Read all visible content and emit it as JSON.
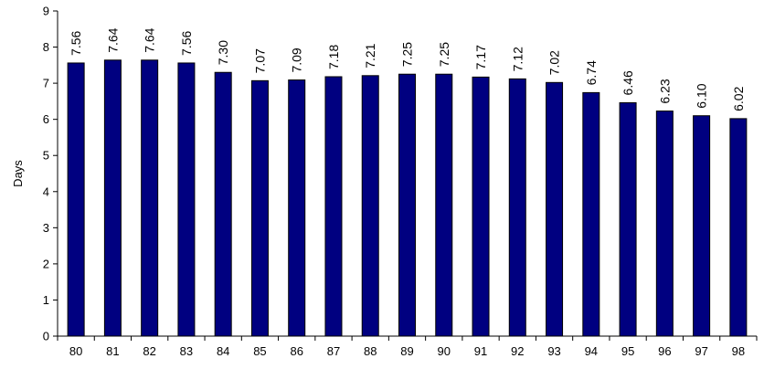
{
  "chart_data": {
    "type": "bar",
    "title": "",
    "xlabel": "",
    "ylabel": "Days",
    "categories": [
      "80",
      "81",
      "82",
      "83",
      "84",
      "85",
      "86",
      "87",
      "88",
      "89",
      "90",
      "91",
      "92",
      "93",
      "94",
      "95",
      "96",
      "97",
      "98"
    ],
    "values": [
      7.56,
      7.64,
      7.64,
      7.56,
      7.3,
      7.07,
      7.09,
      7.18,
      7.21,
      7.25,
      7.25,
      7.17,
      7.12,
      7.02,
      6.74,
      6.46,
      6.23,
      6.1,
      6.02
    ],
    "data_labels": [
      "7.56",
      "7.64",
      "7.64",
      "7.56",
      "7.30",
      "7.07",
      "7.09",
      "7.18",
      "7.21",
      "7.25",
      "7.25",
      "7.17",
      "7.12",
      "7.02",
      "6.74",
      "6.46",
      "6.23",
      "6.10",
      "6.02"
    ],
    "ylim": [
      0,
      9
    ],
    "yticks": [
      "0",
      "1",
      "2",
      "3",
      "4",
      "5",
      "6",
      "7",
      "8",
      "9"
    ],
    "grid": false,
    "legend": "none",
    "bar_color": "#000080",
    "bar_edge_color": "#000000"
  }
}
